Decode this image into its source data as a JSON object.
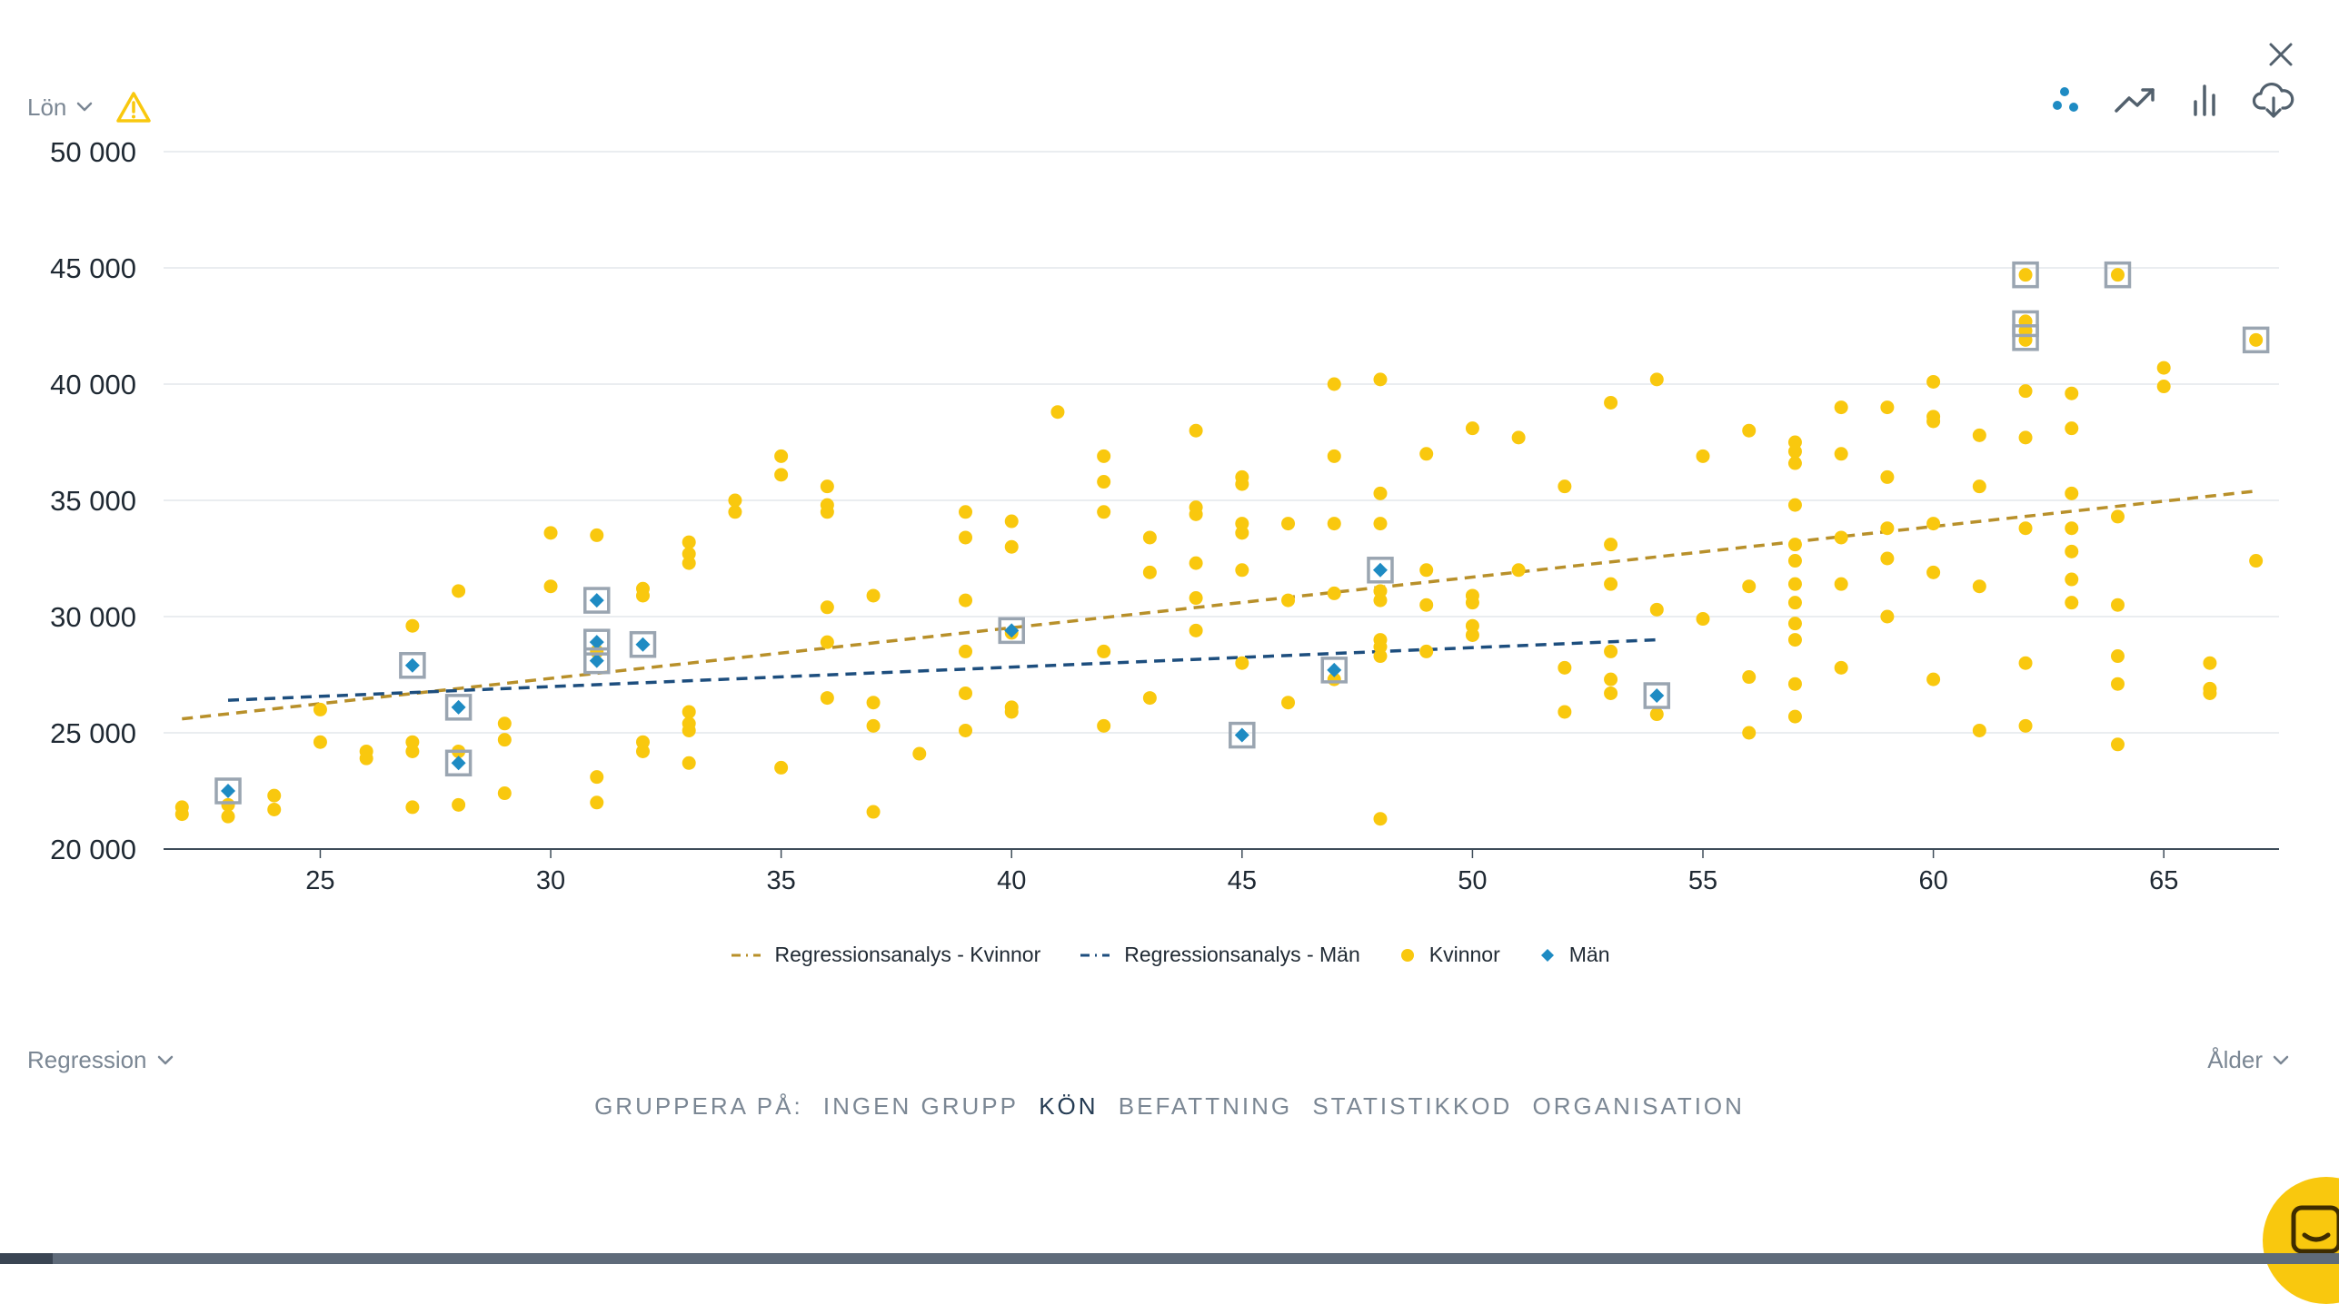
{
  "controls": {
    "y_axis_select": "Lön",
    "regression_select": "Regression",
    "x_axis_select": "Ålder"
  },
  "group_by": {
    "label": "GRUPPERA PÅ:",
    "options": [
      "INGEN GRUPP",
      "KÖN",
      "BEFATTNING",
      "STATISTIKKOD",
      "ORGANISATION"
    ],
    "active": "KÖN"
  },
  "icons": [
    "warning-icon",
    "close-icon",
    "scatter-chart-icon",
    "trend-line-icon",
    "bar-chart-icon",
    "cloud-download-icon",
    "chevron-down-icon",
    "chat-icon"
  ],
  "colors": {
    "women": "#f9c80e",
    "men": "#1e8bc3",
    "women_regression": "#b8902a",
    "men_regression": "#1d4e7e",
    "warning": "#f9c80e",
    "highlight_box": "#9aa5b1"
  },
  "chart_data": {
    "type": "scatter",
    "xlim": [
      21.6,
      67.5
    ],
    "ylim": [
      20000,
      50000
    ],
    "x_ticks": [
      "25",
      "30",
      "35",
      "40",
      "45",
      "50",
      "55",
      "60",
      "65"
    ],
    "y_ticks": [
      "20 000",
      "25 000",
      "30 000",
      "35 000",
      "40 000",
      "45 000",
      "50 000"
    ],
    "grid": true,
    "legend_position": "bottom",
    "legend": [
      "Regressionsanalys - Kvinnor",
      "Regressionsanalys - Män",
      "Kvinnor",
      "Män"
    ],
    "series": [
      {
        "name": "Kvinnor",
        "points": [
          [
            22,
            21800
          ],
          [
            22,
            21500
          ],
          [
            23,
            21900
          ],
          [
            23,
            21400
          ],
          [
            24,
            22300
          ],
          [
            24,
            21700
          ],
          [
            25,
            26000
          ],
          [
            25,
            24600
          ],
          [
            26,
            24200
          ],
          [
            26,
            23900
          ],
          [
            27,
            29600
          ],
          [
            27,
            24600
          ],
          [
            27,
            24200
          ],
          [
            27,
            21800
          ],
          [
            28,
            31100
          ],
          [
            28,
            24200
          ],
          [
            28,
            21900
          ],
          [
            29,
            25400
          ],
          [
            29,
            24700
          ],
          [
            29,
            22400
          ],
          [
            30,
            33600
          ],
          [
            30,
            31300
          ],
          [
            31,
            33500
          ],
          [
            31,
            28500
          ],
          [
            31,
            23100
          ],
          [
            31,
            22000
          ],
          [
            32,
            31200
          ],
          [
            32,
            30900
          ],
          [
            32,
            24600
          ],
          [
            32,
            24200
          ],
          [
            33,
            33200
          ],
          [
            33,
            32700
          ],
          [
            33,
            32300
          ],
          [
            33,
            25900
          ],
          [
            33,
            25400
          ],
          [
            33,
            25100
          ],
          [
            33,
            23700
          ],
          [
            34,
            35000
          ],
          [
            34,
            34500
          ],
          [
            35,
            36900
          ],
          [
            35,
            36100
          ],
          [
            35,
            23500
          ],
          [
            36,
            35600
          ],
          [
            36,
            34800
          ],
          [
            36,
            34500
          ],
          [
            36,
            30400
          ],
          [
            36,
            28900
          ],
          [
            36,
            26500
          ],
          [
            37,
            30900
          ],
          [
            37,
            26300
          ],
          [
            37,
            25300
          ],
          [
            37,
            21600
          ],
          [
            38,
            24100
          ],
          [
            39,
            34500
          ],
          [
            39,
            33400
          ],
          [
            39,
            30700
          ],
          [
            39,
            28500
          ],
          [
            39,
            26700
          ],
          [
            39,
            25100
          ],
          [
            40,
            34100
          ],
          [
            40,
            33000
          ],
          [
            40,
            29300
          ],
          [
            40,
            26100
          ],
          [
            40,
            25900
          ],
          [
            41,
            38800
          ],
          [
            42,
            36900
          ],
          [
            42,
            35800
          ],
          [
            42,
            34500
          ],
          [
            42,
            28500
          ],
          [
            42,
            25300
          ],
          [
            43,
            33400
          ],
          [
            43,
            31900
          ],
          [
            43,
            26500
          ],
          [
            44,
            38000
          ],
          [
            44,
            34700
          ],
          [
            44,
            34400
          ],
          [
            44,
            32300
          ],
          [
            44,
            30800
          ],
          [
            44,
            29400
          ],
          [
            45,
            36000
          ],
          [
            45,
            35700
          ],
          [
            45,
            34000
          ],
          [
            45,
            33600
          ],
          [
            45,
            32000
          ],
          [
            45,
            28000
          ],
          [
            46,
            34000
          ],
          [
            46,
            30700
          ],
          [
            46,
            26300
          ],
          [
            47,
            40000
          ],
          [
            47,
            36900
          ],
          [
            47,
            34000
          ],
          [
            47,
            31000
          ],
          [
            47,
            27300
          ],
          [
            48,
            40200
          ],
          [
            48,
            35300
          ],
          [
            48,
            34000
          ],
          [
            48,
            31100
          ],
          [
            48,
            30700
          ],
          [
            48,
            29000
          ],
          [
            48,
            28700
          ],
          [
            48,
            28300
          ],
          [
            48,
            21300
          ],
          [
            49,
            37000
          ],
          [
            49,
            32000
          ],
          [
            49,
            30500
          ],
          [
            49,
            28500
          ],
          [
            50,
            38100
          ],
          [
            50,
            30900
          ],
          [
            50,
            30600
          ],
          [
            50,
            29600
          ],
          [
            50,
            29200
          ],
          [
            51,
            37700
          ],
          [
            51,
            32000
          ],
          [
            52,
            35600
          ],
          [
            52,
            27800
          ],
          [
            52,
            25900
          ],
          [
            53,
            39200
          ],
          [
            53,
            33100
          ],
          [
            53,
            31400
          ],
          [
            53,
            28500
          ],
          [
            53,
            27300
          ],
          [
            53,
            26700
          ],
          [
            54,
            40200
          ],
          [
            54,
            30300
          ],
          [
            54,
            25800
          ],
          [
            55,
            36900
          ],
          [
            55,
            29900
          ],
          [
            56,
            38000
          ],
          [
            56,
            31300
          ],
          [
            56,
            27400
          ],
          [
            56,
            25000
          ],
          [
            57,
            37500
          ],
          [
            57,
            37100
          ],
          [
            57,
            36600
          ],
          [
            57,
            34800
          ],
          [
            57,
            33100
          ],
          [
            57,
            32400
          ],
          [
            57,
            31400
          ],
          [
            57,
            30600
          ],
          [
            57,
            29700
          ],
          [
            57,
            29000
          ],
          [
            57,
            27100
          ],
          [
            57,
            25700
          ],
          [
            58,
            39000
          ],
          [
            58,
            37000
          ],
          [
            58,
            33400
          ],
          [
            58,
            31400
          ],
          [
            58,
            27800
          ],
          [
            59,
            39000
          ],
          [
            59,
            36000
          ],
          [
            59,
            33800
          ],
          [
            59,
            32500
          ],
          [
            59,
            30000
          ],
          [
            60,
            40100
          ],
          [
            60,
            38600
          ],
          [
            60,
            38400
          ],
          [
            60,
            34000
          ],
          [
            60,
            31900
          ],
          [
            60,
            27300
          ],
          [
            61,
            37800
          ],
          [
            61,
            35600
          ],
          [
            61,
            31300
          ],
          [
            61,
            25100
          ],
          [
            62,
            44700
          ],
          [
            62,
            42700
          ],
          [
            62,
            42300
          ],
          [
            62,
            41900
          ],
          [
            62,
            39700
          ],
          [
            62,
            37700
          ],
          [
            62,
            33800
          ],
          [
            62,
            28000
          ],
          [
            62,
            25300
          ],
          [
            63,
            39600
          ],
          [
            63,
            38100
          ],
          [
            63,
            35300
          ],
          [
            63,
            33800
          ],
          [
            63,
            32800
          ],
          [
            63,
            31600
          ],
          [
            63,
            30600
          ],
          [
            64,
            44700
          ],
          [
            64,
            34300
          ],
          [
            64,
            30500
          ],
          [
            64,
            28300
          ],
          [
            64,
            27100
          ],
          [
            64,
            24500
          ],
          [
            65,
            40700
          ],
          [
            65,
            39900
          ],
          [
            66,
            28000
          ],
          [
            66,
            26900
          ],
          [
            66,
            26700
          ],
          [
            67,
            41900
          ],
          [
            67,
            32400
          ]
        ]
      },
      {
        "name": "Män",
        "points": [
          [
            23,
            22500
          ],
          [
            27,
            27900
          ],
          [
            28,
            26100
          ],
          [
            28,
            23700
          ],
          [
            31,
            30700
          ],
          [
            31,
            28900
          ],
          [
            31,
            28100
          ],
          [
            32,
            28800
          ],
          [
            40,
            29400
          ],
          [
            45,
            24900
          ],
          [
            47,
            27700
          ],
          [
            48,
            32000
          ],
          [
            54,
            26600
          ]
        ]
      }
    ],
    "highlighted": [
      [
        23,
        22500
      ],
      [
        27,
        27900
      ],
      [
        28,
        26100
      ],
      [
        28,
        23700
      ],
      [
        31,
        30700
      ],
      [
        31,
        28900
      ],
      [
        31,
        28100
      ],
      [
        32,
        28800
      ],
      [
        40,
        29400
      ],
      [
        45,
        24900
      ],
      [
        47,
        27700
      ],
      [
        48,
        32000
      ],
      [
        54,
        26600
      ],
      [
        62,
        44700
      ],
      [
        62,
        42600
      ],
      [
        62,
        42000
      ],
      [
        64,
        44700
      ],
      [
        67,
        41900
      ]
    ],
    "regression": [
      {
        "name": "Regressionsanalys - Kvinnor",
        "from": [
          22,
          25600
        ],
        "to": [
          67,
          35400
        ]
      },
      {
        "name": "Regressionsanalys - Män",
        "from": [
          23,
          26400
        ],
        "to": [
          54,
          29000
        ]
      }
    ]
  }
}
